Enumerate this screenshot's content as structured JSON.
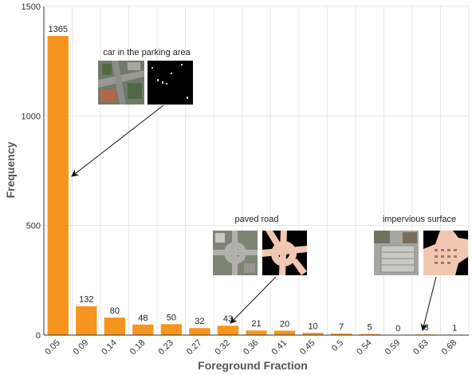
{
  "chart_data": {
    "type": "bar",
    "xlabel": "Foreground Fraction",
    "ylabel": "Frequency",
    "ylim": [
      0,
      1500
    ],
    "yticks": [
      0,
      500,
      1000,
      1500
    ],
    "grid": true,
    "bar_color": "#f7941d",
    "categories": [
      "0.05",
      "0.09",
      "0.14",
      "0.18",
      "0.23",
      "0.27",
      "0.32",
      "0.36",
      "0.41",
      "0.45",
      "0.5",
      "0.54",
      "0.59",
      "0.63",
      "0.68"
    ],
    "values": [
      1365,
      132,
      80,
      48,
      50,
      32,
      43,
      21,
      20,
      10,
      7,
      5,
      0,
      3,
      1
    ],
    "annotations": [
      {
        "text": "car in the parking area",
        "points_to_category": "0.05"
      },
      {
        "text": "paved road",
        "points_to_category": "0.32"
      },
      {
        "text": "impervious surface",
        "points_to_category": "0.63"
      }
    ]
  }
}
